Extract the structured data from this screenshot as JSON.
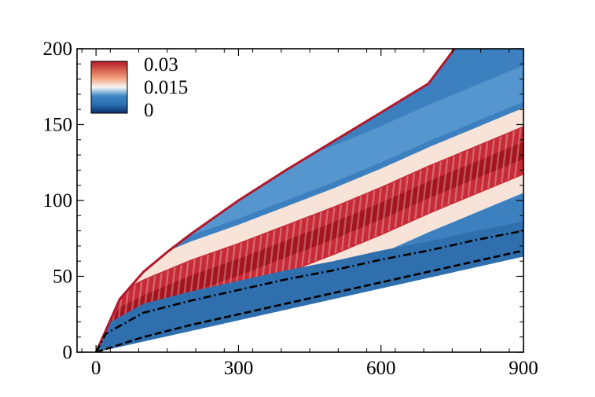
{
  "chart_data": {
    "type": "heatmap",
    "title": "",
    "xlabel": "",
    "ylabel": "",
    "xlim": [
      -40,
      900
    ],
    "ylim": [
      0,
      200
    ],
    "x_ticks": [
      {
        "value": 0,
        "label": "0"
      },
      {
        "value": 300,
        "label": "300"
      },
      {
        "value": 600,
        "label": "600"
      },
      {
        "value": 900,
        "label": "900"
      }
    ],
    "y_ticks": [
      {
        "value": 0,
        "label": "0"
      },
      {
        "value": 50,
        "label": "50"
      },
      {
        "value": 100,
        "label": "100"
      },
      {
        "value": 150,
        "label": "150"
      },
      {
        "value": 200,
        "label": "200"
      }
    ],
    "colorbar": {
      "position": "top-left",
      "min": 0,
      "max": 0.03,
      "labels": [
        "0.03",
        "0.015",
        "0"
      ],
      "colors": [
        "#08306b",
        "#2a6fb0",
        "#3d86c6",
        "#f7f7f7",
        "#f4a582",
        "#d6604d",
        "#b2182b"
      ]
    },
    "boundary_curve": {
      "color": "#b2182b",
      "x": [
        0,
        50,
        100,
        150,
        200,
        250,
        300,
        400,
        500,
        600,
        700,
        755
      ],
      "y": [
        0,
        35,
        53,
        66,
        78,
        89,
        100,
        120,
        139,
        158,
        177,
        200
      ]
    },
    "upper_band": {
      "x": [
        0,
        50,
        100,
        200,
        300,
        400,
        500,
        600,
        700,
        800,
        900
      ],
      "y": [
        0,
        24,
        32,
        45,
        56,
        68,
        80,
        93,
        107,
        120,
        133
      ]
    },
    "upper_band_halfwidth": 16,
    "lower_edge": {
      "x": [
        0,
        900
      ],
      "y": [
        0,
        63
      ]
    },
    "dashdot_line": {
      "style": "dash-dot",
      "color": "#000000",
      "x": [
        0,
        20,
        100,
        200,
        300,
        400,
        500,
        600,
        700,
        800,
        900
      ],
      "y": [
        0,
        12,
        26,
        34,
        41,
        48,
        54,
        61,
        67,
        74,
        80
      ]
    },
    "dashed_line": {
      "style": "dashed",
      "color": "#000000",
      "x": [
        0,
        100,
        200,
        300,
        400,
        500,
        600,
        700,
        800,
        900
      ],
      "y": [
        0,
        10,
        18,
        25,
        32,
        39,
        46,
        53,
        60,
        67
      ]
    },
    "grid": false,
    "legend_placement": "top-left"
  }
}
